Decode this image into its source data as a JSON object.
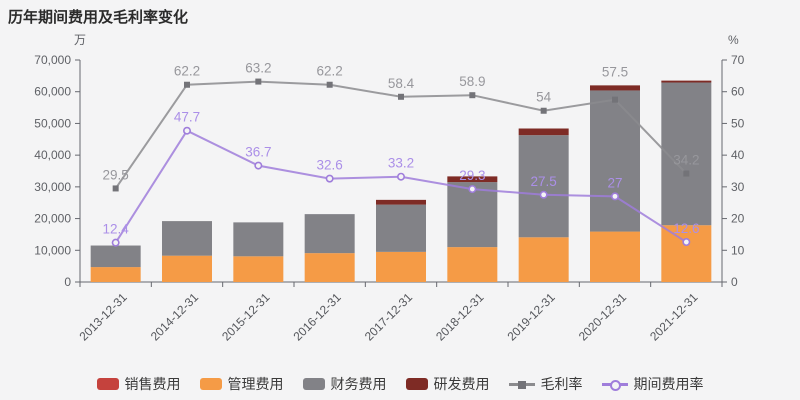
{
  "title": "历年期间费用及毛利率变化",
  "chart_data": {
    "type": "bar",
    "subtype": "stacked-bar-with-lines",
    "categories": [
      "2013-12-31",
      "2014-12-31",
      "2015-12-31",
      "2016-12-31",
      "2017-12-31",
      "2018-12-31",
      "2019-12-31",
      "2020-12-31",
      "2021-12-31"
    ],
    "bar_series": [
      {
        "name": "销售费用",
        "id": "sales-expense",
        "color": "#c5423d",
        "values": [
          0,
          0,
          0,
          0,
          0,
          0,
          0,
          0,
          0
        ]
      },
      {
        "name": "管理费用",
        "id": "admin-expense",
        "color": "#f59b46",
        "values": [
          4700,
          8300,
          8100,
          9100,
          9500,
          11000,
          14100,
          15900,
          17900
        ]
      },
      {
        "name": "财务费用",
        "id": "finance-expense",
        "color": "#828287",
        "values": [
          6800,
          10900,
          10700,
          12300,
          14900,
          20500,
          32200,
          44500,
          45000
        ]
      },
      {
        "name": "研发费用",
        "id": "rd-expense",
        "color": "#7e2b25",
        "values": [
          0,
          0,
          0,
          0,
          1500,
          1800,
          2100,
          1600,
          600
        ]
      }
    ],
    "line_series": [
      {
        "name": "毛利率",
        "id": "gross-margin",
        "color": "#8b8b8e",
        "label_color": "#97979c",
        "marker": "square",
        "values": [
          29.5,
          62.2,
          63.2,
          62.2,
          58.4,
          58.9,
          54,
          57.5,
          34.2
        ]
      },
      {
        "name": "期间费用率",
        "id": "period-expense-ratio",
        "color": "#9f7ddb",
        "label_color": "#ab8fe8",
        "marker": "circle",
        "values": [
          12.4,
          47.7,
          36.7,
          32.6,
          33.2,
          29.3,
          27.5,
          27,
          12.6
        ]
      }
    ],
    "y_axis_left": {
      "unit": "万",
      "min": 0,
      "max": 70000,
      "step": 10000
    },
    "y_axis_right": {
      "unit": "%",
      "min": 0,
      "max": 70,
      "step": 10
    },
    "grid": false,
    "legend_position": "bottom"
  },
  "legend": {
    "items": [
      {
        "id": "sales-expense",
        "label": "销售费用",
        "swatch": "bar",
        "color": "#c5423d"
      },
      {
        "id": "admin-expense",
        "label": "管理费用",
        "swatch": "bar",
        "color": "#f59b46"
      },
      {
        "id": "finance-expense",
        "label": "财务费用",
        "swatch": "bar",
        "color": "#828287"
      },
      {
        "id": "rd-expense",
        "label": "研发费用",
        "swatch": "bar",
        "color": "#7e2b25"
      },
      {
        "id": "gross-margin",
        "label": "毛利率",
        "swatch": "line-square",
        "color": "#8b8b8e",
        "marker_color": "#737378"
      },
      {
        "id": "period-expense-ratio",
        "label": "期间费用率",
        "swatch": "line-circle",
        "color": "#9f7ddb"
      }
    ]
  },
  "colors": {
    "background": "#f4f4f5",
    "axis": "#66686f",
    "axis_label": "#5f6166",
    "title": "#2b2b2b"
  }
}
